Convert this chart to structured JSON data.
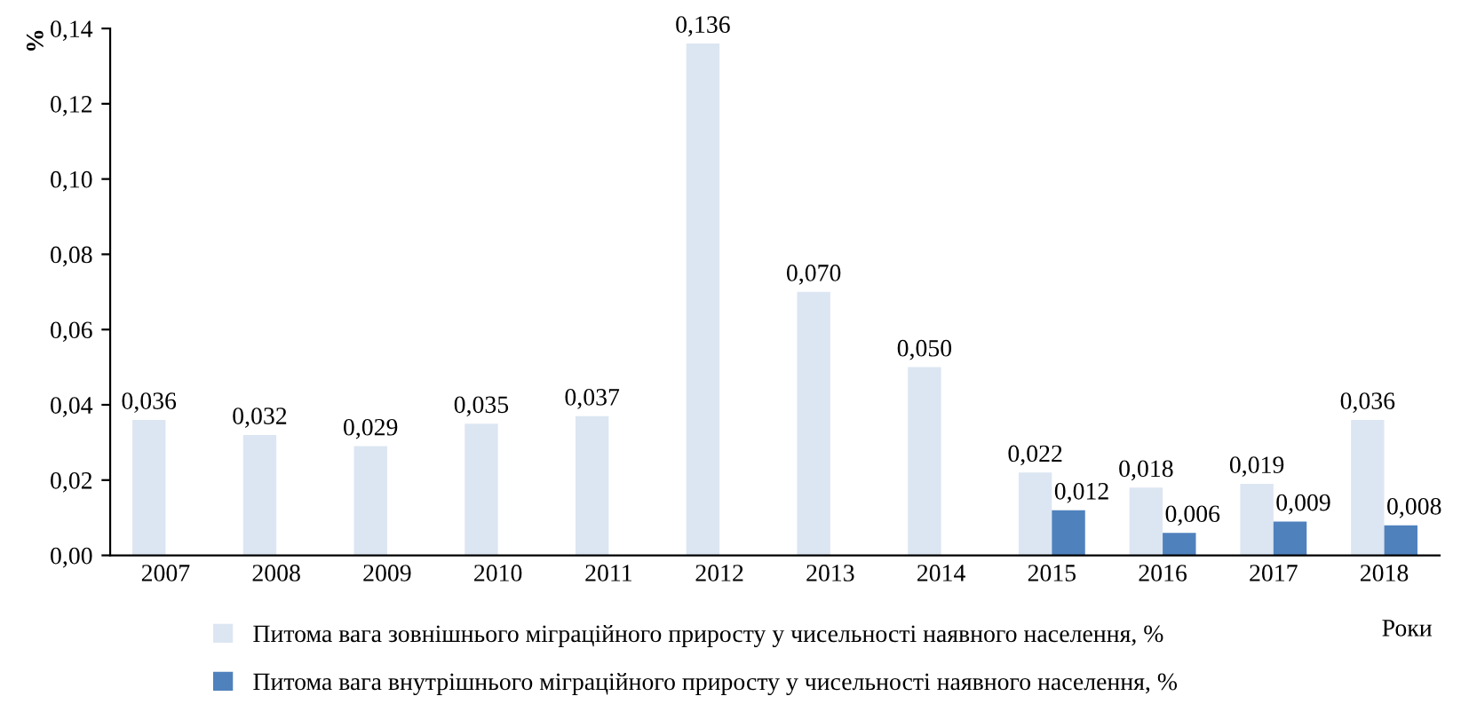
{
  "chart_data": {
    "type": "bar",
    "categories": [
      "2007",
      "2008",
      "2009",
      "2010",
      "2011",
      "2012",
      "2013",
      "2014",
      "2015",
      "2016",
      "2017",
      "2018"
    ],
    "series": [
      {
        "name": "Питома вага зовнішнього міграційного приросту у чисельності наявного населення, %",
        "color": "#dce6f2",
        "values": [
          0.036,
          0.032,
          0.029,
          0.035,
          0.037,
          0.136,
          0.07,
          0.05,
          0.022,
          0.018,
          0.019,
          0.036
        ],
        "value_labels": [
          "0,036",
          "0,032",
          "0,029",
          "0,035",
          "0,037",
          "0,136",
          "0,070",
          "0,050",
          "0,022",
          "0,018",
          "0,019",
          "0,036"
        ]
      },
      {
        "name": "Питома вага внутрішнього міграційного приросту у чисельності наявного населення, %",
        "color": "#4f81bd",
        "values": [
          null,
          null,
          null,
          null,
          null,
          null,
          null,
          null,
          0.012,
          0.006,
          0.009,
          0.008
        ],
        "value_labels": [
          null,
          null,
          null,
          null,
          null,
          null,
          null,
          null,
          "0,012",
          "0,006",
          "0,009",
          "0,008"
        ]
      }
    ],
    "ylabel": "%",
    "xlabel": "Роки",
    "ylim": [
      0,
      0.14
    ],
    "yticks": [
      {
        "value": 0,
        "label": "0,00"
      },
      {
        "value": 0.02,
        "label": "0,02"
      },
      {
        "value": 0.04,
        "label": "0,04"
      },
      {
        "value": 0.06,
        "label": "0,06"
      },
      {
        "value": 0.08,
        "label": "0,08"
      },
      {
        "value": 0.1,
        "label": "0,10"
      },
      {
        "value": 0.12,
        "label": "0,12"
      },
      {
        "value": 0.14,
        "label": "0,14"
      }
    ],
    "grid": false,
    "legend": "bottom"
  }
}
